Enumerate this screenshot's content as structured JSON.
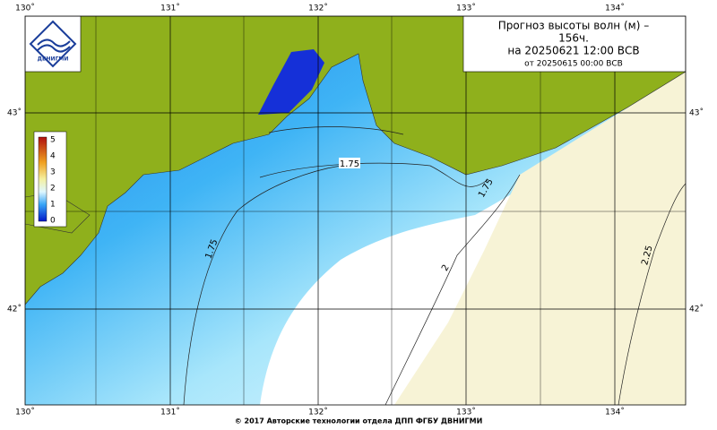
{
  "title": {
    "lines": [
      "Прогноз высоты волн (м) –",
      "156ч.",
      "на 20250621 12:00 ВСВ",
      "от 20250615 00:00 ВСВ"
    ]
  },
  "axes": {
    "top": [
      "130˚",
      "131˚",
      "132˚",
      "133˚",
      "134˚"
    ],
    "bottom": [
      "130˚",
      "131˚",
      "132˚",
      "133˚",
      "134˚"
    ],
    "left": [
      "43˚",
      "42˚"
    ],
    "right": [
      "43˚",
      "42˚"
    ]
  },
  "colorbar": {
    "labels": [
      "5",
      "4",
      "3",
      "2",
      "1",
      "0"
    ]
  },
  "contours": [
    "1.75",
    "1.75",
    "1.75",
    "2",
    "2.25"
  ],
  "logo": "ДВНИГМИ",
  "footer": "© 2017 Авторские технологии отдела ДПП ФГБУ ДВНИГМИ"
}
